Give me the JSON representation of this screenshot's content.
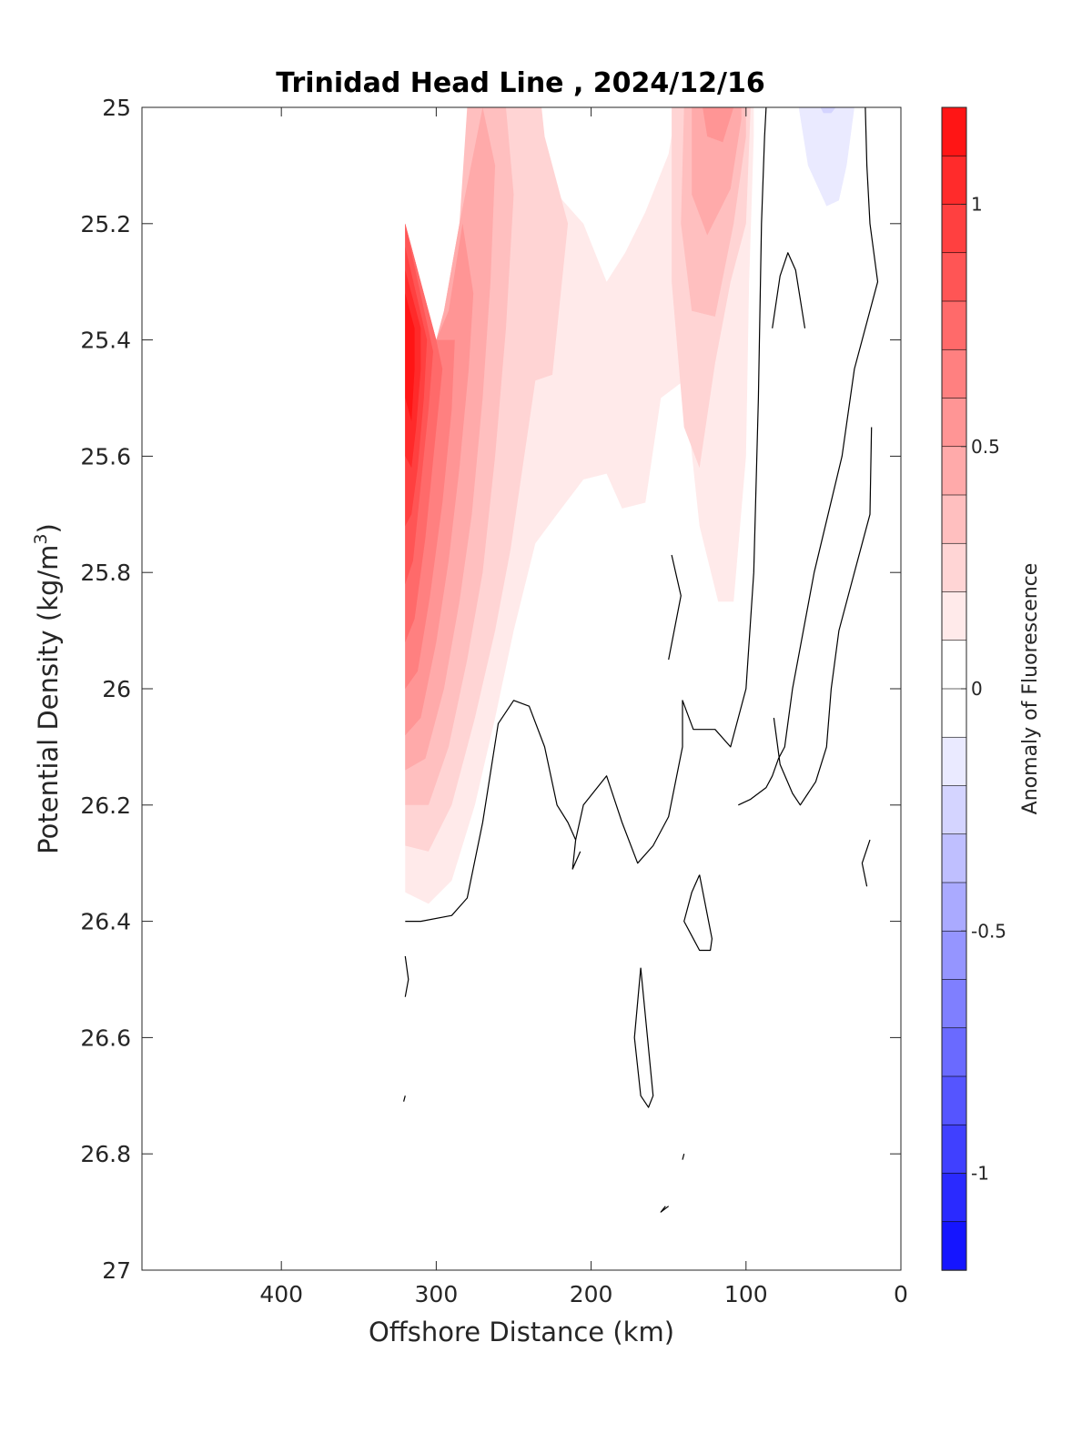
{
  "chart_data": {
    "type": "contour",
    "title": "Trinidad Head Line , 2024/12/16",
    "xlabel": "Offshore Distance (km)",
    "ylabel_main": "Potential Density (kg/m",
    "ylabel_sup": "3",
    "ylabel_end": ")",
    "xlim": [
      490,
      0
    ],
    "ylim": [
      25,
      27
    ],
    "x_reversed": true,
    "y_reversed": true,
    "x_ticks": [
      400,
      300,
      200,
      100,
      0
    ],
    "y_ticks": [
      25,
      25.2,
      25.4,
      25.6,
      25.8,
      26,
      26.2,
      26.4,
      26.6,
      26.8,
      27
    ],
    "x_tick_labels": [
      "400",
      "300",
      "200",
      "100",
      "0"
    ],
    "y_tick_labels": [
      "25",
      "25.2",
      "25.4",
      "25.6",
      "25.8",
      "26",
      "26.2",
      "26.4",
      "26.6",
      "26.8",
      "27"
    ],
    "colorbar": {
      "label": "Anomaly of Fluorescence",
      "range": [
        -1.2,
        1.2
      ],
      "step": 0.1,
      "ticks": [
        1,
        0.5,
        0,
        -0.5,
        -1
      ],
      "tick_labels": [
        "1",
        "0.5",
        "0",
        "-0.5",
        "-1"
      ],
      "colormap": "blue-white-red",
      "low_color": "#0000ff",
      "mid_color": "#ffffff",
      "high_color": "#ff0000"
    },
    "filled_regions": [
      {
        "level": 0.1,
        "points": [
          [
            320,
            26.35
          ],
          [
            305,
            26.37
          ],
          [
            290,
            26.33
          ],
          [
            275,
            26.2
          ],
          [
            262,
            26.05
          ],
          [
            250,
            25.9
          ],
          [
            236,
            25.75
          ],
          [
            222,
            25.7
          ],
          [
            205,
            25.64
          ],
          [
            190,
            25.63
          ],
          [
            180,
            25.69
          ],
          [
            165,
            25.68
          ],
          [
            155,
            25.5
          ],
          [
            140,
            25.47
          ],
          [
            130,
            25.72
          ],
          [
            118,
            25.85
          ],
          [
            108,
            25.85
          ],
          [
            100,
            25.6
          ],
          [
            98,
            25.3
          ],
          [
            95,
            25.05
          ],
          [
            95,
            25
          ],
          [
            145,
            25
          ],
          [
            150,
            25.08
          ],
          [
            165,
            25.18
          ],
          [
            178,
            25.25
          ],
          [
            190,
            25.3
          ],
          [
            205,
            25.2
          ],
          [
            225,
            25.14
          ],
          [
            232,
            25.05
          ],
          [
            232,
            25
          ],
          [
            270,
            25
          ],
          [
            285,
            25.2
          ],
          [
            295,
            25.35
          ],
          [
            300,
            25.4
          ],
          [
            320,
            25.2
          ]
        ]
      },
      {
        "level": 0.2,
        "points": [
          [
            320,
            26.27
          ],
          [
            305,
            26.28
          ],
          [
            290,
            26.2
          ],
          [
            275,
            26.05
          ],
          [
            262,
            25.9
          ],
          [
            252,
            25.76
          ],
          [
            236,
            25.47
          ],
          [
            225,
            25.46
          ],
          [
            215,
            25.2
          ],
          [
            230,
            25.05
          ],
          [
            232,
            25
          ],
          [
            275,
            25
          ],
          [
            285,
            25.2
          ],
          [
            295,
            25.35
          ],
          [
            300,
            25.4
          ],
          [
            320,
            25.2
          ]
        ]
      },
      {
        "level": 0.2,
        "points": [
          [
            148,
            25
          ],
          [
            148,
            25.3
          ],
          [
            140,
            25.55
          ],
          [
            130,
            25.62
          ],
          [
            120,
            25.44
          ],
          [
            110,
            25.3
          ],
          [
            100,
            25.2
          ],
          [
            97,
            25
          ],
          [
            148,
            25
          ]
        ]
      },
      {
        "level": 0.3,
        "points": [
          [
            320,
            26.2
          ],
          [
            305,
            26.2
          ],
          [
            292,
            26.1
          ],
          [
            280,
            25.95
          ],
          [
            270,
            25.8
          ],
          [
            262,
            25.6
          ],
          [
            255,
            25.38
          ],
          [
            250,
            25.15
          ],
          [
            255,
            25
          ],
          [
            280,
            25
          ],
          [
            285,
            25.2
          ],
          [
            295,
            25.35
          ],
          [
            300,
            25.4
          ],
          [
            320,
            25.2
          ]
        ]
      },
      {
        "level": 0.3,
        "points": [
          [
            140,
            25
          ],
          [
            142,
            25.2
          ],
          [
            135,
            25.35
          ],
          [
            120,
            25.36
          ],
          [
            108,
            25.2
          ],
          [
            100,
            25.05
          ],
          [
            100,
            25
          ],
          [
            140,
            25
          ]
        ]
      },
      {
        "level": 0.4,
        "points": [
          [
            320,
            26.14
          ],
          [
            307,
            26.12
          ],
          [
            295,
            26
          ],
          [
            285,
            25.85
          ],
          [
            277,
            25.7
          ],
          [
            270,
            25.5
          ],
          [
            265,
            25.3
          ],
          [
            262,
            25.1
          ],
          [
            270,
            25
          ],
          [
            285,
            25.2
          ],
          [
            295,
            25.35
          ],
          [
            300,
            25.4
          ],
          [
            320,
            25.2
          ]
        ]
      },
      {
        "level": 0.4,
        "points": [
          [
            135,
            25
          ],
          [
            135,
            25.15
          ],
          [
            125,
            25.22
          ],
          [
            110,
            25.14
          ],
          [
            103,
            25.02
          ],
          [
            103,
            25
          ],
          [
            135,
            25
          ]
        ]
      },
      {
        "level": 0.5,
        "points": [
          [
            320,
            26.08
          ],
          [
            310,
            26.05
          ],
          [
            300,
            25.92
          ],
          [
            292,
            25.78
          ],
          [
            285,
            25.62
          ],
          [
            279,
            25.45
          ],
          [
            276,
            25.32
          ],
          [
            283,
            25.2
          ],
          [
            292,
            25.35
          ],
          [
            300,
            25.4
          ],
          [
            320,
            25.2
          ]
        ]
      },
      {
        "level": 0.5,
        "points": [
          [
            128,
            25
          ],
          [
            125,
            25.05
          ],
          [
            115,
            25.06
          ],
          [
            108,
            25
          ],
          [
            128,
            25
          ]
        ]
      },
      {
        "level": 0.6,
        "points": [
          [
            320,
            26.0
          ],
          [
            312,
            25.97
          ],
          [
            304,
            25.84
          ],
          [
            296,
            25.68
          ],
          [
            290,
            25.52
          ],
          [
            288,
            25.4
          ],
          [
            300,
            25.4
          ],
          [
            320,
            25.2
          ]
        ]
      },
      {
        "level": 0.7,
        "points": [
          [
            320,
            25.92
          ],
          [
            314,
            25.88
          ],
          [
            307,
            25.74
          ],
          [
            301,
            25.58
          ],
          [
            296,
            25.45
          ],
          [
            300,
            25.4
          ],
          [
            320,
            25.2
          ]
        ]
      },
      {
        "level": 0.8,
        "points": [
          [
            320,
            25.82
          ],
          [
            315,
            25.78
          ],
          [
            310,
            25.65
          ],
          [
            305,
            25.52
          ],
          [
            302,
            25.42
          ],
          [
            320,
            25.2
          ]
        ]
      },
      {
        "level": 0.9,
        "points": [
          [
            320,
            25.72
          ],
          [
            316,
            25.7
          ],
          [
            312,
            25.62
          ],
          [
            308,
            25.5
          ],
          [
            306,
            25.4
          ],
          [
            320,
            25.24
          ]
        ]
      },
      {
        "level": 1.0,
        "points": [
          [
            320,
            25.6
          ],
          [
            316,
            25.62
          ],
          [
            313,
            25.55
          ],
          [
            310,
            25.45
          ],
          [
            310,
            25.38
          ],
          [
            320,
            25.28
          ]
        ]
      },
      {
        "level": 1.1,
        "points": [
          [
            320,
            25.5
          ],
          [
            316,
            25.54
          ],
          [
            314,
            25.45
          ],
          [
            314,
            25.38
          ],
          [
            320,
            25.32
          ]
        ]
      },
      {
        "level": -0.1,
        "points": [
          [
            66,
            25
          ],
          [
            60,
            25.1
          ],
          [
            48,
            25.17
          ],
          [
            40,
            25.16
          ],
          [
            35,
            25.1
          ],
          [
            30,
            25
          ],
          [
            66,
            25
          ]
        ]
      },
      {
        "level": -0.2,
        "points": [
          [
            52,
            25
          ],
          [
            50,
            25.01
          ],
          [
            45,
            25.01
          ],
          [
            42,
            25
          ],
          [
            52,
            25
          ]
        ]
      }
    ],
    "zero_contours": [
      [
        [
          320,
          26.4
        ],
        [
          310,
          26.4
        ],
        [
          290,
          26.39
        ],
        [
          280,
          26.36
        ],
        [
          270,
          26.23
        ],
        [
          260,
          26.06
        ],
        [
          250,
          26.02
        ],
        [
          240,
          26.03
        ],
        [
          230,
          26.1
        ],
        [
          222,
          26.2
        ],
        [
          215,
          26.23
        ],
        [
          210,
          26.26
        ],
        [
          205,
          26.2
        ],
        [
          190,
          26.15
        ],
        [
          180,
          26.23
        ],
        [
          170,
          26.3
        ],
        [
          160,
          26.27
        ],
        [
          150,
          26.22
        ],
        [
          141,
          26.1
        ],
        [
          141,
          26.02
        ],
        [
          134,
          26.07
        ],
        [
          120,
          26.07
        ],
        [
          110,
          26.1
        ],
        [
          100,
          26.0
        ],
        [
          95,
          25.8
        ],
        [
          92,
          25.5
        ],
        [
          90,
          25.2
        ],
        [
          88,
          25.05
        ],
        [
          87,
          25
        ]
      ],
      [
        [
          23,
          25
        ],
        [
          22,
          25.1
        ],
        [
          20,
          25.2
        ],
        [
          15,
          25.3
        ],
        [
          30,
          25.45
        ],
        [
          38,
          25.6
        ],
        [
          47,
          25.7
        ],
        [
          56,
          25.8
        ],
        [
          63,
          25.9
        ],
        [
          70,
          26.0
        ],
        [
          75,
          26.1
        ],
        [
          79,
          26.12
        ],
        [
          83,
          26.15
        ],
        [
          87,
          26.17
        ],
        [
          92,
          26.18
        ],
        [
          97,
          26.19
        ],
        [
          105,
          26.2
        ]
      ],
      [
        [
          83,
          25.38
        ],
        [
          78,
          25.29
        ],
        [
          73,
          25.25
        ],
        [
          68,
          25.28
        ],
        [
          62,
          25.38
        ]
      ],
      [
        [
          19,
          25.55
        ],
        [
          20,
          25.7
        ],
        [
          30,
          25.8
        ],
        [
          40,
          25.9
        ],
        [
          45,
          26.0
        ],
        [
          48,
          26.1
        ],
        [
          55,
          26.16
        ],
        [
          60,
          26.18
        ],
        [
          65,
          26.2
        ],
        [
          70,
          26.18
        ],
        [
          78,
          26.13
        ],
        [
          82,
          26.05
        ]
      ],
      [
        [
          150,
          25.95
        ],
        [
          142,
          25.84
        ],
        [
          148,
          25.77
        ]
      ],
      [
        [
          320,
          26.46
        ],
        [
          318,
          26.5
        ],
        [
          320,
          26.53
        ]
      ],
      [
        [
          210,
          26.26
        ],
        [
          212,
          26.31
        ],
        [
          207,
          26.28
        ]
      ],
      [
        [
          20,
          26.26
        ],
        [
          25,
          26.3
        ],
        [
          22,
          26.34
        ]
      ],
      [
        [
          130,
          26.32
        ],
        [
          122,
          26.43
        ],
        [
          123,
          26.45
        ],
        [
          130,
          26.45
        ],
        [
          140,
          26.4
        ],
        [
          135,
          26.35
        ],
        [
          130,
          26.32
        ]
      ],
      [
        [
          168,
          26.48
        ],
        [
          172,
          26.6
        ],
        [
          168,
          26.7
        ],
        [
          163,
          26.72
        ],
        [
          160,
          26.7
        ],
        [
          168,
          26.48
        ]
      ],
      [
        [
          320,
          26.7
        ],
        [
          321,
          26.71
        ]
      ],
      [
        [
          140,
          26.8
        ],
        [
          141,
          26.81
        ]
      ],
      [
        [
          150,
          26.89
        ],
        [
          155,
          26.9
        ],
        [
          152,
          26.89
        ]
      ]
    ]
  }
}
